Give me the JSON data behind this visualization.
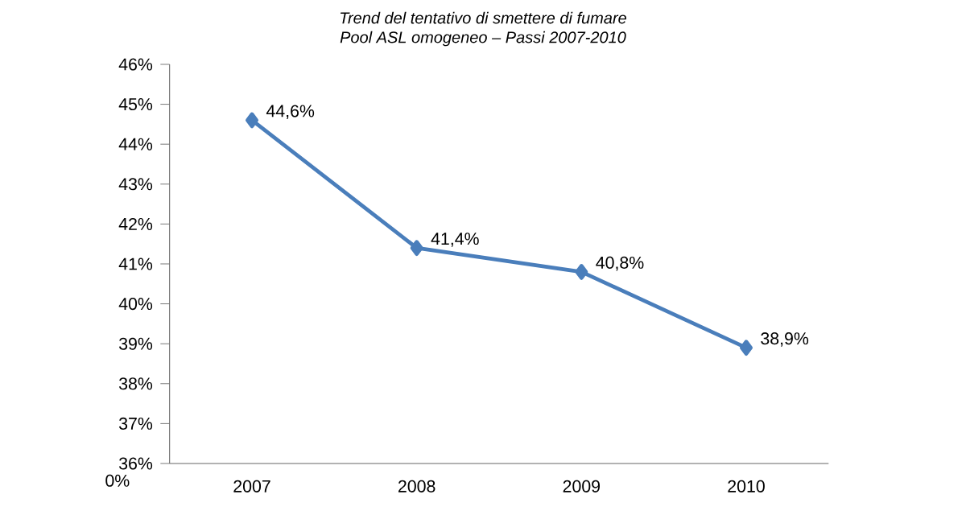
{
  "chart_data": {
    "type": "line",
    "title": "Trend del tentativo di smettere di fumare",
    "subtitle": "Pool ASL omogeneo – Passi 2007-2010",
    "categories": [
      "2007",
      "2008",
      "2009",
      "2010"
    ],
    "series": [
      {
        "color": "#4a7ebb",
        "values": [
          44.6,
          41.4,
          40.8,
          38.9
        ],
        "value_labels": [
          "44,6%",
          "41,4%",
          "40,8%",
          "38,9%"
        ]
      }
    ],
    "ylim": [
      36,
      46
    ],
    "yticks": [
      {
        "value": 36,
        "label": "36%"
      },
      {
        "value": 37,
        "label": "37%"
      },
      {
        "value": 38,
        "label": "38%"
      },
      {
        "value": 39,
        "label": "39%"
      },
      {
        "value": 40,
        "label": "40%"
      },
      {
        "value": 41,
        "label": "41%"
      },
      {
        "value": 42,
        "label": "42%"
      },
      {
        "value": 43,
        "label": "43%"
      },
      {
        "value": 44,
        "label": "44%"
      },
      {
        "value": 45,
        "label": "45%"
      },
      {
        "value": 46,
        "label": "46%"
      }
    ],
    "annotations": [
      "0%"
    ],
    "marker": "diamond",
    "line_style": "solid",
    "grid": false
  }
}
